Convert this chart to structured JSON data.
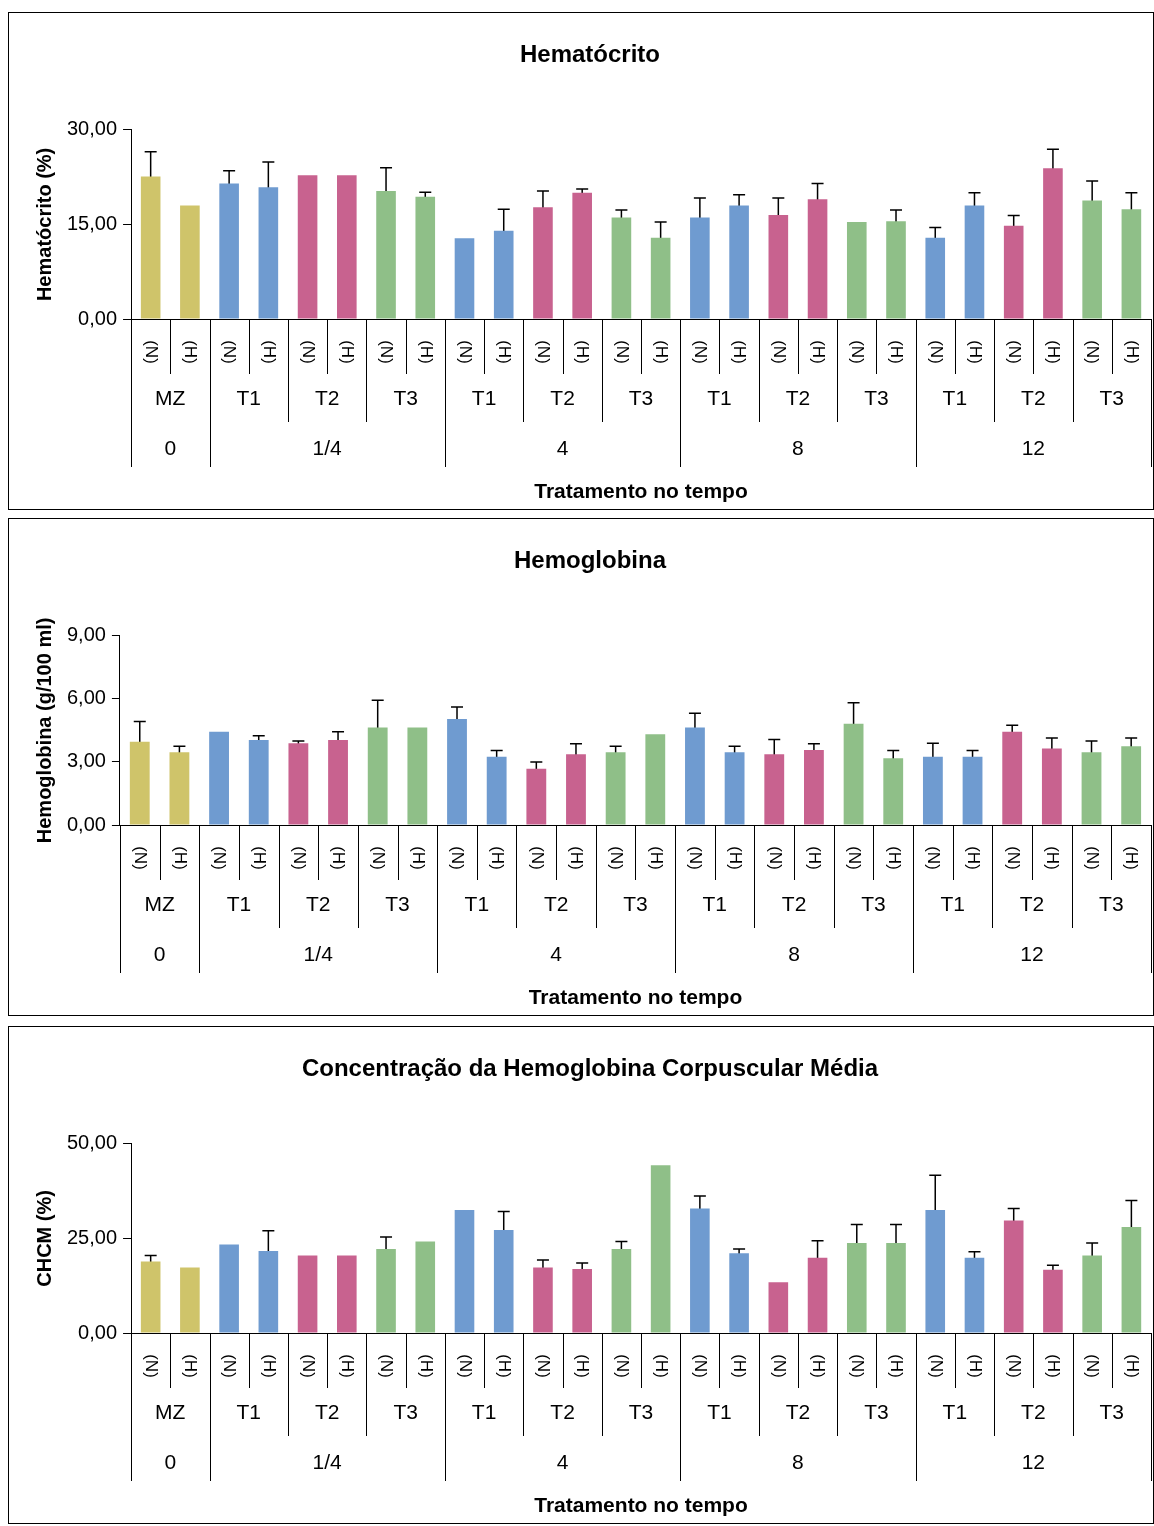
{
  "chart_data": [
    {
      "type": "bar",
      "title": "Hematócrito",
      "ylabel": "Hematócrito (%)",
      "xlabel": "Tratamento no tempo",
      "categories": [
        "(N)",
        "(H)",
        "(N)",
        "(H)",
        "(N)",
        "(H)",
        "(N)",
        "(H)",
        "(N)",
        "(H)",
        "(N)",
        "(H)",
        "(N)",
        "(H)",
        "(N)",
        "(H)",
        "(N)",
        "(H)",
        "(N)",
        "(H)",
        "(N)",
        "(H)",
        "(N)",
        "(H)",
        "(N)",
        "(H)"
      ],
      "values": [
        22.6,
        18.0,
        21.5,
        20.9,
        22.8,
        22.8,
        20.3,
        19.4,
        12.8,
        14.0,
        17.7,
        20.0,
        16.1,
        12.9,
        16.1,
        18.0,
        16.5,
        19.0,
        15.4,
        15.5,
        12.9,
        18.0,
        14.8,
        23.9,
        18.8,
        17.4
      ],
      "errors": [
        3.9,
        null,
        2.0,
        4.0,
        null,
        null,
        3.7,
        0.7,
        null,
        3.4,
        2.6,
        0.6,
        1.2,
        2.5,
        3.1,
        1.7,
        2.7,
        2.5,
        null,
        1.8,
        1.6,
        2.0,
        1.6,
        3.0,
        3.1,
        2.6
      ],
      "colors": [
        "#cfc46a",
        "#cfc46a",
        "#6f9bd0",
        "#6f9bd0",
        "#c8628f",
        "#c8628f",
        "#8fbf88",
        "#8fbf88",
        "#6f9bd0",
        "#6f9bd0",
        "#c8628f",
        "#c8628f",
        "#8fbf88",
        "#8fbf88",
        "#6f9bd0",
        "#6f9bd0",
        "#c8628f",
        "#c8628f",
        "#8fbf88",
        "#8fbf88",
        "#6f9bd0",
        "#6f9bd0",
        "#c8628f",
        "#c8628f",
        "#8fbf88",
        "#8fbf88"
      ],
      "ylim": [
        0,
        30
      ],
      "yticks": [
        {
          "value": 0,
          "label": "0,00"
        },
        {
          "value": 15,
          "label": "15,00"
        },
        {
          "value": 30,
          "label": "30,00"
        }
      ],
      "annotations": [
        "MZ",
        "T1",
        "T2",
        "T3",
        "T1",
        "T2",
        "T3",
        "T1",
        "T2",
        "T3",
        "T1",
        "T2",
        "T3",
        "0",
        "1/4",
        "4",
        "8",
        "12"
      ]
    },
    {
      "type": "bar",
      "title": "Hemoglobina",
      "ylabel": "Hemoglobina (g/100 ml)",
      "xlabel": "Tratamento no tempo",
      "categories": [
        "(N)",
        "(H)",
        "(N)",
        "(H)",
        "(N)",
        "(H)",
        "(N)",
        "(H)",
        "(N)",
        "(H)",
        "(N)",
        "(H)",
        "(N)",
        "(H)",
        "(N)",
        "(H)",
        "(N)",
        "(H)",
        "(N)",
        "(H)",
        "(N)",
        "(H)",
        "(N)",
        "(H)",
        "(N)",
        "(H)"
      ],
      "values": [
        3.96,
        3.46,
        4.43,
        4.04,
        3.89,
        4.04,
        4.64,
        4.64,
        5.04,
        3.25,
        2.68,
        3.36,
        3.46,
        4.32,
        4.64,
        3.46,
        3.36,
        3.57,
        4.82,
        3.18,
        3.25,
        3.25,
        4.43,
        3.64,
        3.46,
        3.75
      ],
      "errors": [
        0.96,
        0.29,
        null,
        0.21,
        0.1,
        0.39,
        1.29,
        null,
        0.57,
        0.29,
        0.32,
        0.5,
        0.29,
        null,
        0.68,
        0.29,
        0.71,
        0.29,
        1.0,
        0.36,
        0.64,
        0.29,
        0.32,
        0.5,
        0.54,
        0.39
      ],
      "colors": [
        "#cfc46a",
        "#cfc46a",
        "#6f9bd0",
        "#6f9bd0",
        "#c8628f",
        "#c8628f",
        "#8fbf88",
        "#8fbf88",
        "#6f9bd0",
        "#6f9bd0",
        "#c8628f",
        "#c8628f",
        "#8fbf88",
        "#8fbf88",
        "#6f9bd0",
        "#6f9bd0",
        "#c8628f",
        "#c8628f",
        "#8fbf88",
        "#8fbf88",
        "#6f9bd0",
        "#6f9bd0",
        "#c8628f",
        "#c8628f",
        "#8fbf88",
        "#8fbf88"
      ],
      "ylim": [
        0,
        9
      ],
      "yticks": [
        {
          "value": 0,
          "label": "0,00"
        },
        {
          "value": 3,
          "label": "3,00"
        },
        {
          "value": 6,
          "label": "6,00"
        },
        {
          "value": 9,
          "label": "9,00"
        }
      ],
      "annotations": [
        "MZ",
        "T1",
        "T2",
        "T3",
        "T1",
        "T2",
        "T3",
        "T1",
        "T2",
        "T3",
        "T1",
        "T2",
        "T3",
        "0",
        "1/4",
        "4",
        "8",
        "12"
      ]
    },
    {
      "type": "bar",
      "title": "Concentração da Hemoglobina Corpuscular Média",
      "ylabel": "CHCM (%)",
      "xlabel": "Tratamento no tempo",
      "categories": [
        "(N)",
        "(H)",
        "(N)",
        "(H)",
        "(N)",
        "(H)",
        "(N)",
        "(H)",
        "(N)",
        "(H)",
        "(N)",
        "(H)",
        "(N)",
        "(H)",
        "(N)",
        "(H)",
        "(N)",
        "(H)",
        "(N)",
        "(H)",
        "(N)",
        "(H)",
        "(N)",
        "(H)",
        "(N)",
        "(H)"
      ],
      "values": [
        18.9,
        17.3,
        23.4,
        21.7,
        20.5,
        20.5,
        22.2,
        24.2,
        32.5,
        27.2,
        17.3,
        16.9,
        22.2,
        44.3,
        32.9,
        21.1,
        13.4,
        19.9,
        23.8,
        23.8,
        32.5,
        19.9,
        29.7,
        16.7,
        20.5,
        28.0
      ],
      "errors": [
        1.6,
        null,
        null,
        5.3,
        null,
        null,
        3.2,
        null,
        null,
        4.9,
        2.0,
        1.6,
        2.0,
        null,
        3.3,
        1.1,
        null,
        4.5,
        4.9,
        4.9,
        9.2,
        1.6,
        3.2,
        1.2,
        3.3,
        7.0
      ],
      "colors": [
        "#cfc46a",
        "#cfc46a",
        "#6f9bd0",
        "#6f9bd0",
        "#c8628f",
        "#c8628f",
        "#8fbf88",
        "#8fbf88",
        "#6f9bd0",
        "#6f9bd0",
        "#c8628f",
        "#c8628f",
        "#8fbf88",
        "#8fbf88",
        "#6f9bd0",
        "#6f9bd0",
        "#c8628f",
        "#c8628f",
        "#8fbf88",
        "#8fbf88",
        "#6f9bd0",
        "#6f9bd0",
        "#c8628f",
        "#c8628f",
        "#8fbf88",
        "#8fbf88"
      ],
      "ylim": [
        0,
        50
      ],
      "yticks": [
        {
          "value": 0,
          "label": "0,00"
        },
        {
          "value": 25,
          "label": "25,00"
        },
        {
          "value": 50,
          "label": "50,00"
        }
      ],
      "annotations": [
        "MZ",
        "T1",
        "T2",
        "T3",
        "T1",
        "T2",
        "T3",
        "T1",
        "T2",
        "T3",
        "T1",
        "T2",
        "T3",
        "0",
        "1/4",
        "4",
        "8",
        "12"
      ]
    }
  ]
}
